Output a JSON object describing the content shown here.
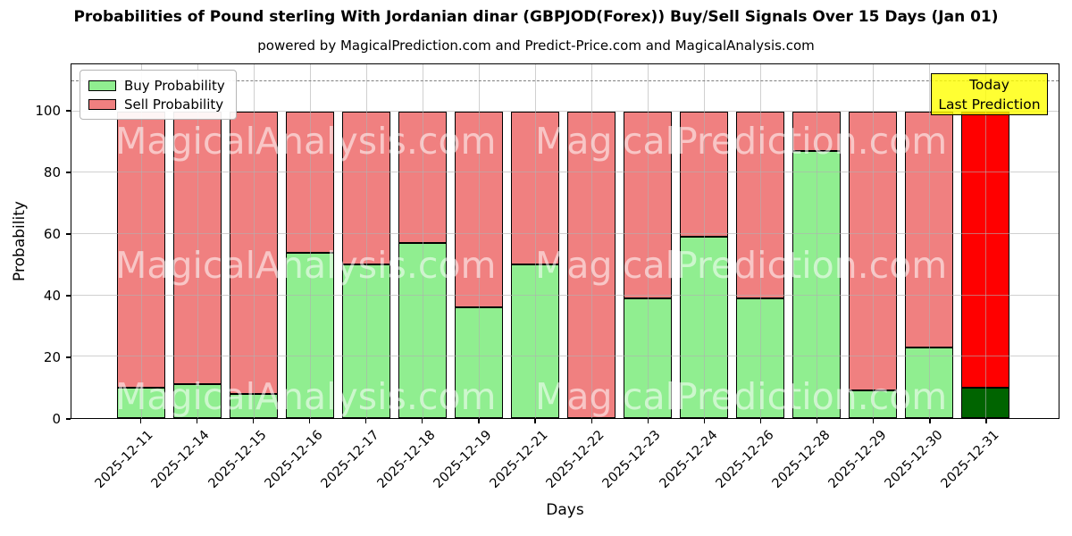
{
  "title": "Probabilities of Pound sterling With Jordanian dinar (GBPJOD(Forex)) Buy/Sell Signals Over 15 Days (Jan 01)",
  "subtitle": "powered by MagicalPrediction.com and Predict-Price.com and MagicalAnalysis.com",
  "legend": {
    "items": [
      {
        "label": "Buy Probability",
        "color": "#90ee90"
      },
      {
        "label": "Sell Probability",
        "color": "#f08080"
      }
    ]
  },
  "annotation_box": {
    "line1": "Today",
    "line2": "Last Prediction",
    "bg_color": "#ffff00"
  },
  "watermarks": {
    "left_text": "MagicalAnalysis.com",
    "right_text": "MagicalPrediction.com"
  },
  "axes": {
    "xlabel": "Days",
    "ylabel": "Probability",
    "yticks": [
      0,
      20,
      40,
      60,
      80,
      100
    ],
    "dashed_line_y": 110
  },
  "chart_data": {
    "type": "bar",
    "stacked": true,
    "title": "Probabilities of Pound sterling With Jordanian dinar (GBPJOD(Forex)) Buy/Sell Signals Over 15 Days (Jan 01)",
    "xlabel": "Days",
    "ylabel": "Probability",
    "ylim": [
      0,
      115.3
    ],
    "grid": true,
    "legend_position": "upper left",
    "categories": [
      "2025-12-11",
      "2025-12-14",
      "2025-12-15",
      "2025-12-16",
      "2025-12-17",
      "2025-12-18",
      "2025-12-19",
      "2025-12-21",
      "2025-12-22",
      "2025-12-23",
      "2025-12-24",
      "2025-12-26",
      "2025-12-28",
      "2025-12-29",
      "2025-12-30",
      "2025-12-31"
    ],
    "series": [
      {
        "name": "Buy Probability",
        "color": "#90ee90",
        "values": [
          10,
          11,
          8,
          54,
          50,
          57,
          36,
          50,
          0,
          39,
          59,
          39,
          87,
          9,
          23,
          10
        ]
      },
      {
        "name": "Sell Probability",
        "color": "#f08080",
        "values": [
          90,
          89,
          92,
          46,
          50,
          43,
          64,
          50,
          100,
          61,
          41,
          61,
          13,
          91,
          77,
          90
        ]
      }
    ],
    "today_index": 15,
    "today_colors": {
      "buy": "#006400",
      "sell": "#ff0000"
    },
    "dashed_line_y": 110
  }
}
